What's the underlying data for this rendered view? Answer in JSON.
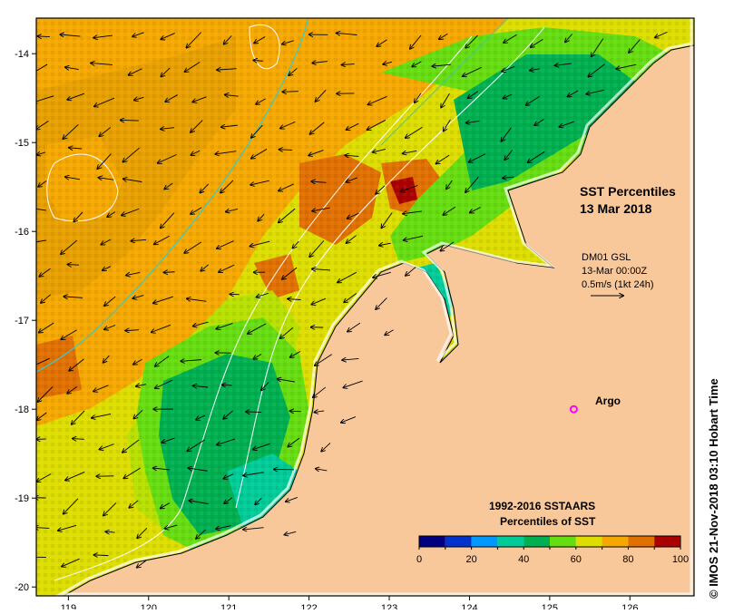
{
  "map": {
    "title_line1": "SST Percentiles",
    "title_line2": "13 Mar 2018",
    "x_ticks": [
      "119",
      "120",
      "121",
      "122",
      "123",
      "124",
      "125",
      "126"
    ],
    "y_ticks": [
      "-14",
      "-15",
      "-16",
      "-17",
      "-18",
      "-19",
      "-20"
    ],
    "lon_range": [
      118.6,
      126.8
    ],
    "lat_range": [
      -20.1,
      -13.6
    ]
  },
  "current_legend": {
    "line1": "DM01 GSL",
    "line2": "13-Mar 00:00Z",
    "line3": "0.5m/s (1kt 24h)"
  },
  "argo": {
    "label": "Argo",
    "lon": 125.3,
    "lat": -18.0,
    "color": "#ff00ff"
  },
  "colorbar": {
    "title_line1": "1992-2016 SSTAARS",
    "title_line2": "Percentiles of SST",
    "tick_labels": [
      "0",
      "20",
      "40",
      "60",
      "80",
      "100"
    ],
    "colors": [
      "#000080",
      "#0033cc",
      "#0099ff",
      "#00cc99",
      "#00b050",
      "#66dd11",
      "#dddd00",
      "#f5a800",
      "#e07000",
      "#aa0000"
    ]
  },
  "credit": "© IMOS 21-Nov-2018 03:10 Hobart Time"
}
